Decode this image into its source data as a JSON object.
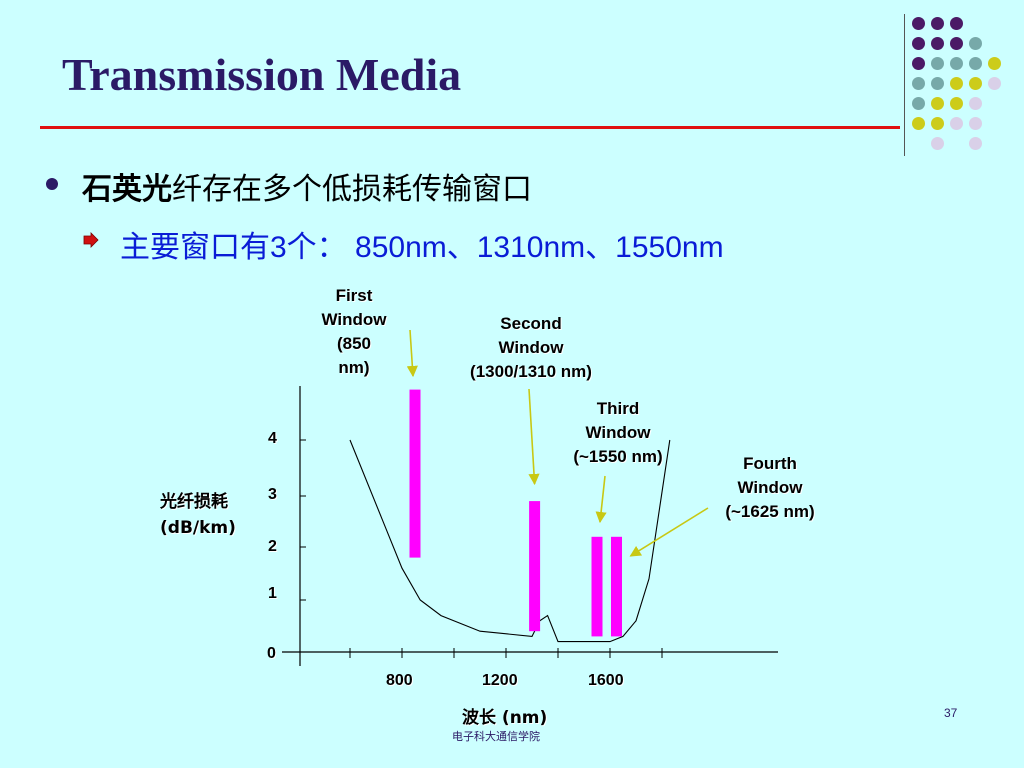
{
  "slide": {
    "title": "Transmission Media",
    "bullet1_bold": "石英光",
    "bullet1_rest": "纤存在多个低损耗传输窗口",
    "bullet2": "主要窗口有3个： 850nm、1310nm、1550nm",
    "footer": "电子科大通信学院",
    "page_number": "37"
  },
  "colors": {
    "background": "#ccffff",
    "title": "#2b1a66",
    "rule": "#e01010",
    "sub_bullet_text": "#0a1cd6",
    "window_bar": "#ff00ff",
    "pointer_arrow": "#c8c814",
    "dot_purple": "#4b1a66",
    "dot_teal": "#77a9a9",
    "dot_yellow": "#cccc1a",
    "dot_lavender": "#d9d0e8"
  },
  "chart_data": {
    "type": "line",
    "ylabel_line1": "光纤损耗",
    "ylabel_line2": "(dB/km)",
    "xlabel": "波长 (nm)",
    "x_ticks": [
      "800",
      "1200",
      "1600"
    ],
    "y_ticks": [
      "0",
      "1",
      "2",
      "3",
      "4"
    ],
    "loss_curve": {
      "x": [
        600,
        800,
        870,
        950,
        1100,
        1300,
        1330,
        1360,
        1400,
        1500,
        1600,
        1650,
        1700,
        1750,
        1830
      ],
      "y": [
        4.0,
        1.6,
        1.0,
        0.7,
        0.4,
        0.3,
        0.6,
        0.7,
        0.2,
        0.2,
        0.2,
        0.3,
        0.6,
        1.4,
        4.0
      ]
    },
    "windows": [
      {
        "label_lines": [
          "First",
          "Window",
          "(850",
          "nm)"
        ],
        "x": 850,
        "y_low": 1.8,
        "y_high": 4.9
      },
      {
        "label_lines": [
          "Second",
          "Window",
          "(1300/1310 nm)"
        ],
        "x": 1310,
        "y_low": 0.4,
        "y_high": 2.9
      },
      {
        "label_lines": [
          "Third",
          "Window",
          "(~1550 nm)"
        ],
        "x": 1550,
        "y_low": 0.3,
        "y_high": 2.2
      },
      {
        "label_lines": [
          "Fourth",
          "Window",
          "(~1625 nm)"
        ],
        "x": 1625,
        "y_low": 0.3,
        "y_high": 2.2
      }
    ]
  }
}
